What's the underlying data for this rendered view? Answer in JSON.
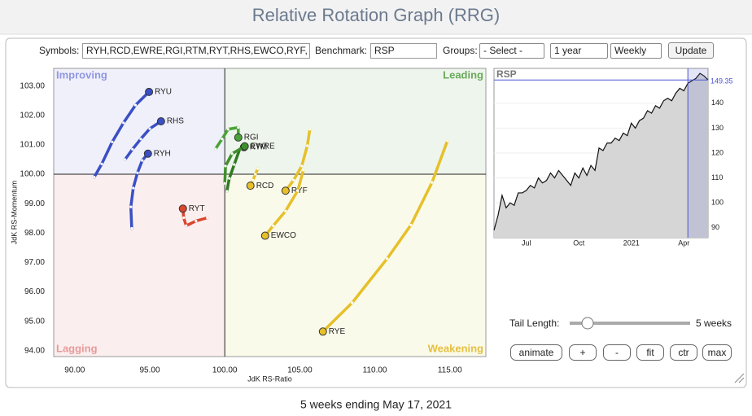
{
  "title": "Relative Rotation Graph (RRG)",
  "controls": {
    "symbols_label": "Symbols:",
    "symbols": "RYH,RCD,EWRE,RGI,RTM,RYT,RHS,EWCO,RYF,",
    "benchmark_label": "Benchmark:",
    "benchmark": "RSP",
    "groups_label": "Groups:",
    "groups": "- Select -",
    "period": "1 year",
    "frequency": "Weekly",
    "update": "Update",
    "tail_length_label": "Tail Length:",
    "tail_length": "5 weeks",
    "buttons": [
      "animate",
      "+",
      "-",
      "fit",
      "ctr",
      "max"
    ]
  },
  "chart_data": [
    {
      "type": "rrg",
      "xlabel": "JdK RS-Ratio",
      "ylabel": "JdK RS-Momentum",
      "xlim": [
        88.6,
        117.4
      ],
      "ylim": [
        93.8,
        103.6
      ],
      "center": [
        100,
        100
      ],
      "xticks": [
        {
          "value": 90,
          "label": "90.00"
        },
        {
          "value": 95,
          "label": "95.00"
        },
        {
          "value": 100,
          "label": "100.00"
        },
        {
          "value": 105,
          "label": "105.00"
        },
        {
          "value": 110,
          "label": "110.00"
        },
        {
          "value": 115,
          "label": "115.00"
        }
      ],
      "yticks": [
        {
          "value": 94,
          "label": "94.00"
        },
        {
          "value": 95,
          "label": "95.00"
        },
        {
          "value": 96,
          "label": "96.00"
        },
        {
          "value": 97,
          "label": "97.00"
        },
        {
          "value": 98,
          "label": "98.00"
        },
        {
          "value": 99,
          "label": "99.00"
        },
        {
          "value": 100,
          "label": "100.00"
        },
        {
          "value": 101,
          "label": "101.00"
        },
        {
          "value": 102,
          "label": "102.00"
        },
        {
          "value": 103,
          "label": "103.00"
        }
      ],
      "quadrants": [
        {
          "label": "Improving",
          "color": "#8f97e0",
          "fill": "#f0f0fb"
        },
        {
          "label": "Leading",
          "color": "#6aaa5a",
          "fill": "#eef5ec"
        },
        {
          "label": "Lagging",
          "color": "#e79a9a",
          "fill": "#fbeeee"
        },
        {
          "label": "Weakening",
          "color": "#e5c040",
          "fill": "#fafaea"
        }
      ],
      "series": [
        {
          "name": "RYU",
          "color": "#3a4fc4",
          "x": [
            91.3,
            91.8,
            92.5,
            93.25,
            94.05,
            94.95
          ],
          "y": [
            99.9,
            100.35,
            101.1,
            101.75,
            102.35,
            102.8
          ]
        },
        {
          "name": "RHS",
          "color": "#3a4fc4",
          "x": [
            93.35,
            93.85,
            94.4,
            95.0,
            95.75
          ],
          "y": [
            100.5,
            100.85,
            101.2,
            101.55,
            101.8
          ]
        },
        {
          "name": "RYH",
          "color": "#3a4fc4",
          "x": [
            93.8,
            93.74,
            93.9,
            94.18,
            94.5,
            94.88
          ],
          "y": [
            98.16,
            98.89,
            99.53,
            100.05,
            100.47,
            100.7
          ]
        },
        {
          "name": "RYT",
          "color": "#d9462e",
          "x": [
            98.84,
            98.08,
            97.43,
            97.26,
            97.21
          ],
          "y": [
            98.52,
            98.41,
            98.25,
            98.52,
            98.83
          ]
        },
        {
          "name": "RGI",
          "color": "#4aa336",
          "x": [
            99.38,
            99.82,
            100.22,
            100.9,
            100.9
          ],
          "y": [
            100.86,
            101.2,
            101.53,
            101.59,
            101.25
          ]
        },
        {
          "name": "RTM",
          "color": "#2f7a22",
          "x": [
            100.14,
            100.3,
            100.63,
            101.0,
            101.28
          ],
          "y": [
            99.42,
            99.86,
            100.33,
            100.86,
            100.92
          ]
        },
        {
          "name": "EWRE",
          "color": "#3f8f2c",
          "x": [
            100.0,
            100.05,
            100.49,
            101.33
          ],
          "y": [
            99.69,
            100.28,
            100.7,
            100.95
          ]
        },
        {
          "name": "RCD",
          "color": "#e6c02a",
          "x": [
            102.2,
            102.04,
            101.88,
            101.71
          ],
          "y": [
            100.19,
            100.0,
            99.8,
            99.61
          ]
        },
        {
          "name": "RYF",
          "color": "#e6c02a",
          "x": [
            105.67,
            105.5,
            105.13,
            104.59,
            104.05
          ],
          "y": [
            101.53,
            100.97,
            100.28,
            99.8,
            99.44
          ]
        },
        {
          "name": "EWCO",
          "color": "#e6c02a",
          "x": [
            105.24,
            104.86,
            104.05,
            103.23,
            102.69
          ],
          "y": [
            100.14,
            99.44,
            98.75,
            98.25,
            97.91
          ]
        },
        {
          "name": "RYE",
          "color": "#e6c02a",
          "x": [
            114.84,
            113.81,
            112.4,
            110.82,
            108.49,
            106.54
          ],
          "y": [
            101.14,
            99.72,
            98.27,
            97.13,
            95.63,
            94.65
          ]
        }
      ]
    },
    {
      "type": "line",
      "title": "RSP",
      "color": "#111111",
      "fill": "#d6d6d6",
      "highlight": "#4a55d0",
      "ylim": [
        86,
        154
      ],
      "yticks": [
        90,
        100,
        110,
        120,
        130,
        140
      ],
      "categories": [
        null,
        null,
        null,
        null,
        null,
        null,
        null,
        null,
        "Jul",
        null,
        null,
        null,
        null,
        null,
        null,
        null,
        null,
        null,
        null,
        null,
        null,
        "Oct",
        null,
        null,
        null,
        null,
        null,
        null,
        null,
        null,
        null,
        null,
        null,
        null,
        "2021",
        null,
        null,
        null,
        null,
        null,
        null,
        null,
        null,
        null,
        null,
        null,
        null,
        "Apr",
        null,
        null,
        null,
        null,
        null,
        null
      ],
      "values": [
        89,
        95,
        103,
        98,
        100,
        99,
        104,
        104,
        105,
        107,
        106,
        110,
        108,
        109,
        112,
        110,
        113,
        111,
        109,
        107,
        112,
        110,
        114,
        111,
        115,
        113,
        122,
        121,
        124,
        124,
        126,
        125,
        128,
        127,
        132,
        130,
        133,
        134,
        137,
        136,
        139,
        138,
        141,
        142,
        141,
        144,
        146,
        145,
        148,
        149,
        150,
        152,
        151,
        149.35
      ]
    }
  ],
  "footer": "5 weeks ending May 17, 2021"
}
